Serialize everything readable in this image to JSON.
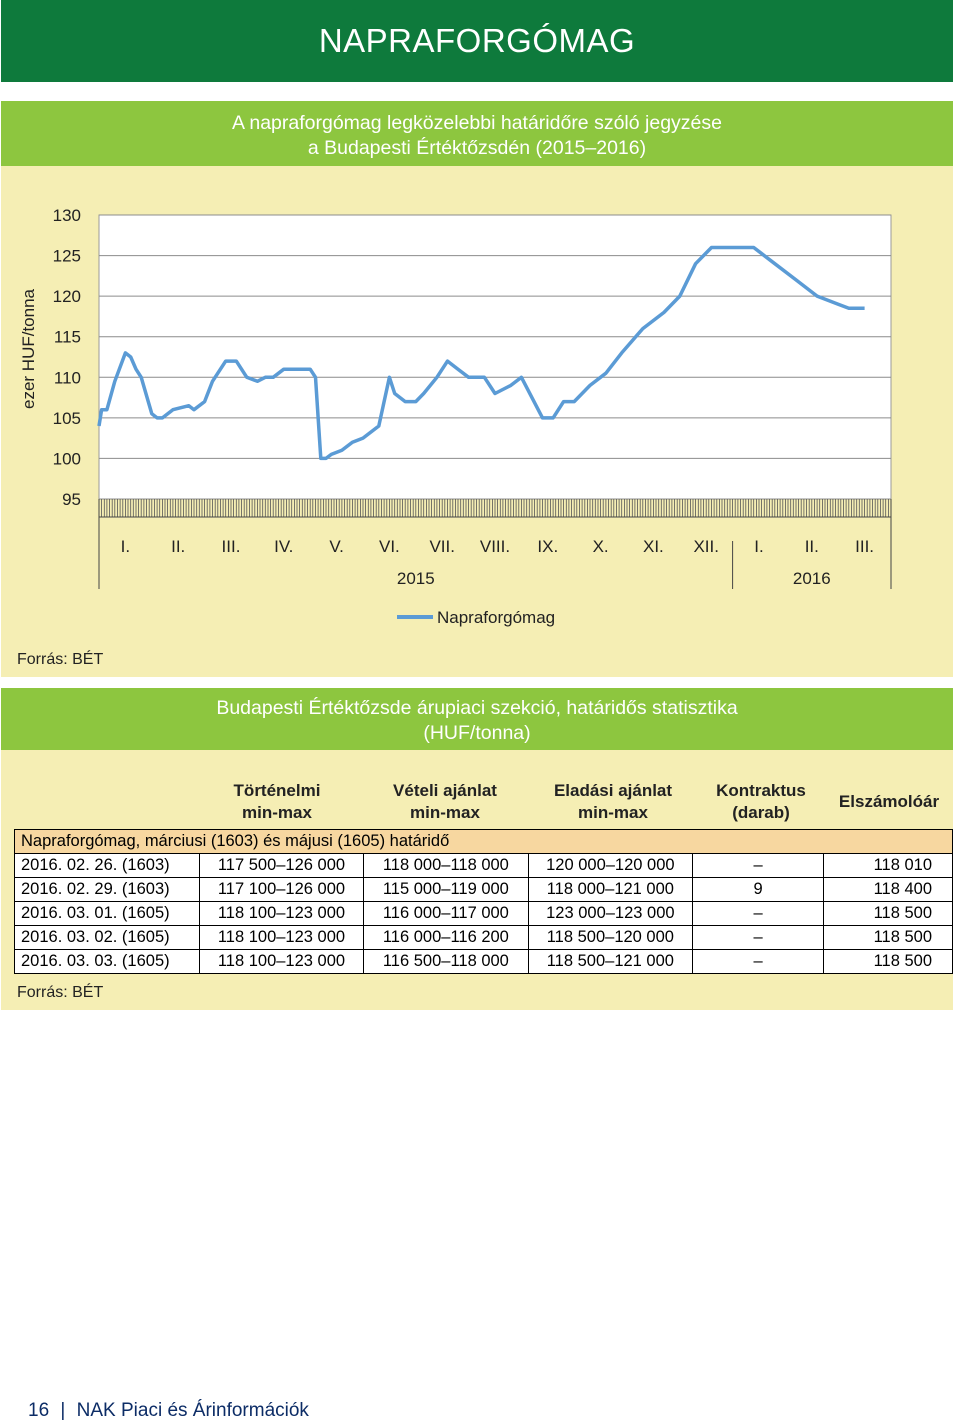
{
  "header": {
    "title": "NAPRAFORGÓMAG"
  },
  "chart_section": {
    "title_line1": "A napraforgómag legközelebbi határidőre szóló jegyzése",
    "title_line2": "a Budapesti Értéktőzsdén (2015–2016)",
    "source": "Forrás: BÉT"
  },
  "chart_data": {
    "type": "line",
    "ylabel": "ezer HUF/tonna",
    "ylim": [
      95,
      130
    ],
    "yticks": [
      95,
      100,
      105,
      110,
      115,
      120,
      125,
      130
    ],
    "month_labels": [
      "I.",
      "II.",
      "III.",
      "IV.",
      "V.",
      "VI.",
      "VII.",
      "VIII.",
      "IX.",
      "X.",
      "XI.",
      "XII.",
      "I.",
      "II.",
      "III."
    ],
    "year_labels": [
      "2015",
      "2016"
    ],
    "legend": "Napraforgómag",
    "legend_position": "bottom",
    "grid": "horizontal",
    "line_color": "#5b9bd5",
    "series": [
      {
        "name": "Napraforgómag",
        "x": [
          0.0,
          0.05,
          0.15,
          0.3,
          0.5,
          0.6,
          0.7,
          0.8,
          1.0,
          1.1,
          1.2,
          1.4,
          1.7,
          1.8,
          2.0,
          2.15,
          2.4,
          2.5,
          2.6,
          2.8,
          3.0,
          3.15,
          3.3,
          3.5,
          3.7,
          4.0,
          4.1,
          4.2,
          4.3,
          4.4,
          4.6,
          4.8,
          5.0,
          5.3,
          5.5,
          5.6,
          5.8,
          6.0,
          6.15,
          6.4,
          6.6,
          6.8,
          7.0,
          7.3,
          7.5,
          7.8,
          8.0,
          8.4,
          8.6,
          8.8,
          9.0,
          9.3,
          9.6,
          9.9,
          10.3,
          10.7,
          11.0,
          11.3,
          11.6,
          12.0,
          12.4,
          12.8,
          13.2,
          13.6,
          14.0,
          14.2,
          14.5
        ],
        "values": [
          104,
          106,
          106,
          109.5,
          113,
          112.5,
          111,
          110,
          105.5,
          105,
          105,
          106,
          106.5,
          106,
          107,
          109.5,
          112,
          112,
          112,
          110,
          109.5,
          110,
          110,
          111,
          111,
          111,
          110,
          100,
          100,
          100.5,
          101,
          102,
          102.5,
          104,
          110,
          108,
          107,
          107,
          108,
          110,
          112,
          111,
          110,
          110,
          108,
          109,
          110,
          105,
          105,
          107,
          107,
          109,
          110.5,
          113,
          116,
          118,
          120,
          124,
          126,
          126,
          126,
          124,
          122,
          120,
          119,
          118.5,
          118.5
        ]
      }
    ]
  },
  "table_section": {
    "title_line1": "Budapesti Értéktőzsde árupiaci szekció, határidős statisztika",
    "title_line2": "(HUF/tonna)",
    "columns": [
      {
        "line1": "Történelmi",
        "line2": "min-max"
      },
      {
        "line1": "Vételi ajánlat",
        "line2": "min-max"
      },
      {
        "line1": "Eladási ajánlat",
        "line2": "min-max"
      },
      {
        "line1": "Kontraktus",
        "line2": "(darab)"
      },
      {
        "line1": "Elszámolóár",
        "line2": ""
      }
    ],
    "group_label": "Napraforgómag, márciusi (1603) és májusi (1605) határidő",
    "rows": [
      {
        "date": "2016. 02. 26. (1603)",
        "hist": "117 500–126 000",
        "bid": "118 000–118 000",
        "ask": "120 000–120 000",
        "contracts": "–",
        "settle": "118 010"
      },
      {
        "date": "2016. 02. 29. (1603)",
        "hist": "117 100–126 000",
        "bid": "115 000–119 000",
        "ask": "118 000–121 000",
        "contracts": "9",
        "settle": "118 400"
      },
      {
        "date": "2016. 03. 01. (1605)",
        "hist": "118 100–123 000",
        "bid": "116 000–117 000",
        "ask": "123 000–123 000",
        "contracts": "–",
        "settle": "118 500"
      },
      {
        "date": "2016. 03. 02. (1605)",
        "hist": "118 100–123 000",
        "bid": "116 000–116 200",
        "ask": "118 500–120 000",
        "contracts": "–",
        "settle": "118 500"
      },
      {
        "date": "2016. 03. 03. (1605)",
        "hist": "118 100–123 000",
        "bid": "116 500–118 000",
        "ask": "118 500–121 000",
        "contracts": "–",
        "settle": "118 500"
      }
    ],
    "source": "Forrás: BÉT"
  },
  "footer": {
    "page_number": "16",
    "separator": "|",
    "publication": "NAK Piaci és Árinformációk"
  }
}
